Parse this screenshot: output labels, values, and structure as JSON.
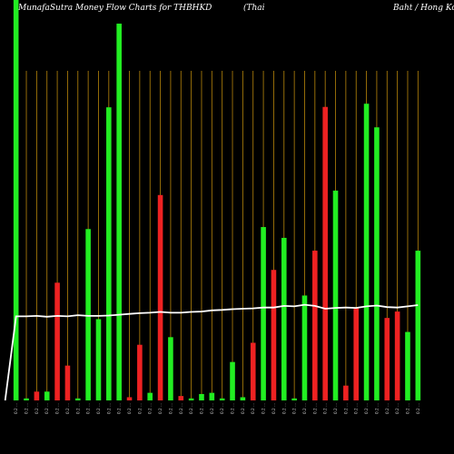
{
  "header": {
    "title_left": "MunafaSutra  Money Flow  Charts for THBHKD",
    "title_mid": "(Thai",
    "title_right": "Baht / Hong Kong"
  },
  "colors": {
    "background": "#000000",
    "up_bar": "#22ee22",
    "down_bar": "#ee2222",
    "grid": "#b8860b",
    "line": "#ffffff"
  },
  "chart_data": {
    "type": "bar",
    "ylim": [
      0,
      100
    ],
    "grid": "vertical",
    "x": [
      "0.2 ...",
      "0.2 ...",
      "0.2 ...",
      "0.2 ...",
      "0.2 ...",
      "0.2 ...",
      "0.2 ...",
      "0.2 ...",
      "0.2 ...",
      "0.2 ...",
      "0.2 ...",
      "0.2 ...",
      "0.2 ...",
      "0.2 ...",
      "0.2 ...",
      "0.2 ...",
      "0.2 ...",
      "0.2 ...",
      "0.2 ...",
      "0.2 ...",
      "0.2 ...",
      "0.2 ...",
      "0.2 ...",
      "0.2 ...",
      "0.2 ...",
      "0.2 ...",
      "0.2 ...",
      "0.2 ...",
      "0.2 ...",
      "0.2 ...",
      "0.2 ...",
      "0.2 ...",
      "0.2 ...",
      "0.2 ...",
      "0.2 ...",
      "0.2 ...",
      "0.2 ...",
      "0.2 ...",
      "0.2 ...",
      "0.2 ..."
    ],
    "bars": [
      {
        "value": 100.0,
        "color": "green"
      },
      {
        "value": 0.5,
        "color": "green"
      },
      {
        "value": 2.2,
        "color": "red"
      },
      {
        "value": 2.2,
        "color": "green"
      },
      {
        "value": 29.4,
        "color": "red"
      },
      {
        "value": 8.7,
        "color": "red"
      },
      {
        "value": 0.5,
        "color": "green"
      },
      {
        "value": 42.8,
        "color": "green"
      },
      {
        "value": 20.3,
        "color": "green"
      },
      {
        "value": 73.2,
        "color": "green"
      },
      {
        "value": 94.1,
        "color": "green"
      },
      {
        "value": 0.8,
        "color": "red"
      },
      {
        "value": 13.9,
        "color": "red"
      },
      {
        "value": 1.9,
        "color": "green"
      },
      {
        "value": 51.3,
        "color": "red"
      },
      {
        "value": 15.8,
        "color": "green"
      },
      {
        "value": 1.1,
        "color": "red"
      },
      {
        "value": 0.5,
        "color": "green"
      },
      {
        "value": 1.6,
        "color": "green"
      },
      {
        "value": 1.9,
        "color": "green"
      },
      {
        "value": 0.5,
        "color": "green"
      },
      {
        "value": 9.6,
        "color": "green"
      },
      {
        "value": 0.8,
        "color": "green"
      },
      {
        "value": 14.4,
        "color": "red"
      },
      {
        "value": 43.3,
        "color": "green"
      },
      {
        "value": 32.6,
        "color": "red"
      },
      {
        "value": 40.6,
        "color": "green"
      },
      {
        "value": 0.5,
        "color": "green"
      },
      {
        "value": 26.2,
        "color": "green"
      },
      {
        "value": 37.4,
        "color": "red"
      },
      {
        "value": 73.3,
        "color": "red"
      },
      {
        "value": 52.4,
        "color": "green"
      },
      {
        "value": 3.7,
        "color": "red"
      },
      {
        "value": 23.0,
        "color": "red"
      },
      {
        "value": 74.1,
        "color": "green"
      },
      {
        "value": 68.2,
        "color": "green"
      },
      {
        "value": 20.6,
        "color": "red"
      },
      {
        "value": 22.2,
        "color": "red"
      },
      {
        "value": 17.1,
        "color": "green"
      },
      {
        "value": 37.4,
        "color": "green"
      }
    ],
    "line": [
      21,
      21,
      21.1,
      20.9,
      21.1,
      21,
      21.3,
      21.1,
      21.1,
      21.2,
      21.4,
      21.6,
      21.8,
      21.9,
      22.1,
      21.9,
      21.9,
      22.1,
      22.2,
      22.5,
      22.6,
      22.8,
      22.9,
      23,
      23.2,
      23.2,
      23.6,
      23.5,
      23.9,
      23.6,
      22.9,
      23.1,
      23.2,
      23.1,
      23.5,
      23.7,
      23.3,
      23.2,
      23.5,
      23.8
    ]
  }
}
